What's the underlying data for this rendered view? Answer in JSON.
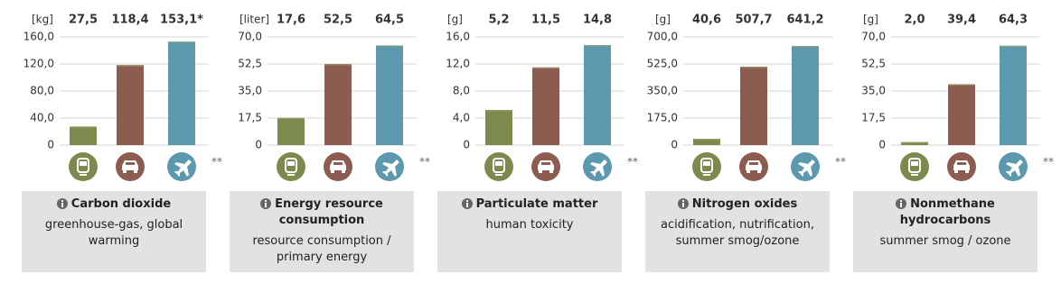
{
  "chart_data": [
    {
      "type": "bar",
      "unit": "[kg]",
      "title": "Carbon dioxide",
      "subtitle": "greenhouse-gas, global warming",
      "categories": [
        null,
        null,
        null
      ],
      "values": [
        27.5,
        118.4,
        153.1
      ],
      "value_labels": [
        "27,5",
        "118,4",
        "153,1*"
      ],
      "colors": [
        "#7d8a4d",
        "#8c5c50",
        "#5c98ae"
      ],
      "ylim": [
        0,
        160
      ],
      "yticks": [
        0,
        {
          "value": 40,
          "label": "40,0"
        },
        {
          "value": 80,
          "label": "80,0"
        },
        {
          "value": 120,
          "label": "120,0"
        },
        {
          "value": 160,
          "label": "160,0"
        }
      ],
      "annotation": "**",
      "grid": true
    },
    {
      "type": "bar",
      "unit": "[liter]",
      "title": "Energy resource consumption",
      "subtitle": "resource consumption / primary energy",
      "categories": [
        null,
        null,
        null
      ],
      "values": [
        17.6,
        52.5,
        64.5
      ],
      "value_labels": [
        "17,6",
        "52,5",
        "64,5"
      ],
      "colors": [
        "#7d8a4d",
        "#8c5c50",
        "#5c98ae"
      ],
      "ylim": [
        0,
        70
      ],
      "yticks": [
        0,
        {
          "value": 17.5,
          "label": "17,5"
        },
        {
          "value": 35,
          "label": "35,0"
        },
        {
          "value": 52.5,
          "label": "52,5"
        },
        {
          "value": 70,
          "label": "70,0"
        }
      ],
      "annotation": "**",
      "grid": true
    },
    {
      "type": "bar",
      "unit": "[g]",
      "title": "Particulate matter",
      "subtitle": "human toxicity",
      "categories": [
        null,
        null,
        null
      ],
      "values": [
        5.2,
        11.5,
        14.8
      ],
      "value_labels": [
        "5,2",
        "11,5",
        "14,8"
      ],
      "colors": [
        "#7d8a4d",
        "#8c5c50",
        "#5c98ae"
      ],
      "ylim": [
        0,
        16
      ],
      "yticks": [
        0,
        {
          "value": 4,
          "label": "4,0"
        },
        {
          "value": 8,
          "label": "8,0"
        },
        {
          "value": 12,
          "label": "12,0"
        },
        {
          "value": 16,
          "label": "16,0"
        }
      ],
      "annotation": "**",
      "grid": true
    },
    {
      "type": "bar",
      "unit": "[g]",
      "title": "Nitrogen oxides",
      "subtitle": "acidification, nutrification, summer smog/ozone",
      "categories": [
        null,
        null,
        null
      ],
      "values": [
        40.6,
        507.7,
        641.2
      ],
      "value_labels": [
        "40,6",
        "507,7",
        "641,2"
      ],
      "colors": [
        "#7d8a4d",
        "#8c5c50",
        "#5c98ae"
      ],
      "ylim": [
        0,
        700
      ],
      "yticks": [
        0,
        {
          "value": 175,
          "label": "175,0"
        },
        {
          "value": 350,
          "label": "350,0"
        },
        {
          "value": 525,
          "label": "525,0"
        },
        {
          "value": 700,
          "label": "700,0"
        }
      ],
      "annotation": "**",
      "grid": true
    },
    {
      "type": "bar",
      "unit": "[g]",
      "title": "Nonmethane hydrocarbons",
      "subtitle": "summer smog / ozone",
      "categories": [
        null,
        null,
        null
      ],
      "values": [
        2.0,
        39.4,
        64.3
      ],
      "value_labels": [
        "2,0",
        "39,4",
        "64,3"
      ],
      "colors": [
        "#7d8a4d",
        "#8c5c50",
        "#5c98ae"
      ],
      "ylim": [
        0,
        70
      ],
      "yticks": [
        0,
        {
          "value": 17.5,
          "label": "17,5"
        },
        {
          "value": 35,
          "label": "35,0"
        },
        {
          "value": 52.5,
          "label": "52,5"
        },
        {
          "value": 70,
          "label": "70,0"
        }
      ],
      "annotation": "**",
      "grid": true
    }
  ]
}
